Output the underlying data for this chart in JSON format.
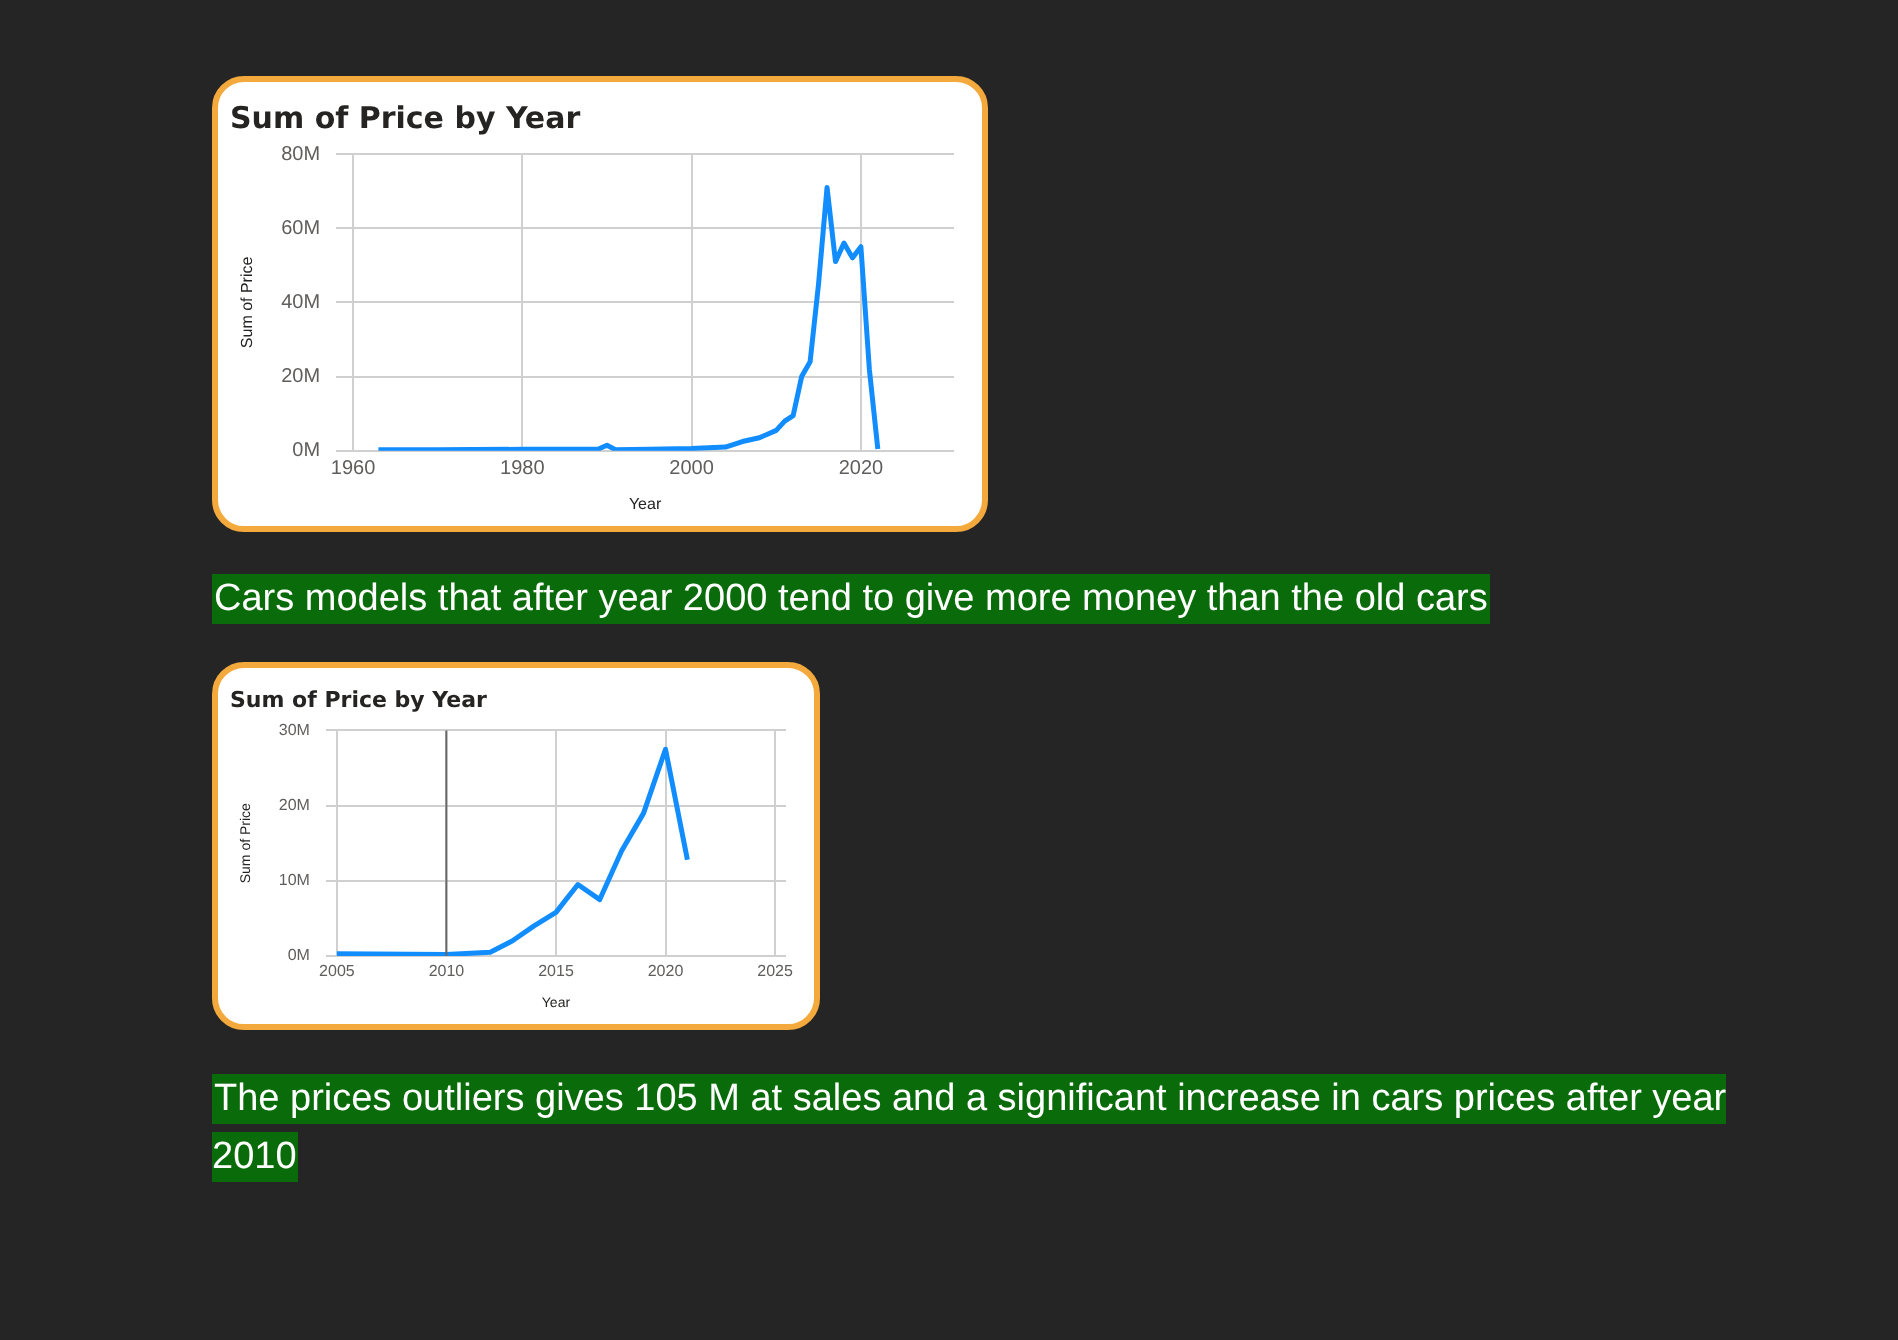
{
  "chart_data": [
    {
      "type": "line",
      "title": "Sum of Price by Year",
      "xlabel": "Year",
      "ylabel": "Sum of Price",
      "color": "#118dff",
      "marker": "none",
      "grid": true,
      "x": [
        1963,
        1970,
        1980,
        1989,
        1990,
        1991,
        1995,
        2000,
        2004,
        2006,
        2008,
        2010,
        2011,
        2012,
        2013,
        2014,
        2015,
        2016,
        2017,
        2018,
        2019,
        2020,
        2021,
        2022
      ],
      "values": [
        0.3,
        0.3,
        0.4,
        0.5,
        1.5,
        0.3,
        0.4,
        0.6,
        1,
        2.5,
        3.5,
        5.5,
        8,
        9.5,
        20,
        24,
        45,
        71,
        51,
        56,
        52,
        55,
        22,
        0.5
      ],
      "xlim": [
        1958,
        2031
      ],
      "xticks": [
        1960,
        1980,
        2000,
        2020
      ],
      "ylim": [
        0,
        80
      ],
      "yticks": [
        {
          "value": 0,
          "label": "0M"
        },
        {
          "value": 20,
          "label": "20M"
        },
        {
          "value": 40,
          "label": "40M"
        },
        {
          "value": 60,
          "label": "60M"
        },
        {
          "value": 80,
          "label": "80M"
        }
      ],
      "annotations": [
        "Cars models that after year 2000 tend to give more money than the old cars"
      ]
    },
    {
      "type": "line",
      "title": "Sum of Price by Year",
      "xlabel": "Year",
      "ylabel": "Sum of Price",
      "color": "#118dff",
      "marker": "none",
      "grid": true,
      "x": [
        2005,
        2010,
        2012,
        2013,
        2014,
        2015,
        2016,
        2017,
        2018,
        2019,
        2020,
        2021
      ],
      "values": [
        0.3,
        0.2,
        0.5,
        2,
        4,
        5.8,
        9.5,
        7.5,
        14,
        19,
        27.5,
        12.8
      ],
      "xlim": [
        2004.5,
        2025.5
      ],
      "xticks": [
        2005,
        2010,
        2015,
        2020,
        2025
      ],
      "ylim": [
        0,
        30
      ],
      "yticks": [
        {
          "value": 0,
          "label": "0M"
        },
        {
          "value": 10,
          "label": "10M"
        },
        {
          "value": 20,
          "label": "20M"
        },
        {
          "value": 30,
          "label": "30M"
        }
      ],
      "ref_lines": [
        {
          "axis": "x",
          "value": 2010,
          "color": "#666666"
        }
      ],
      "annotations": [
        "The prices outliers gives 105 M at sales and a significant increase in cars prices after year 2010"
      ]
    }
  ]
}
